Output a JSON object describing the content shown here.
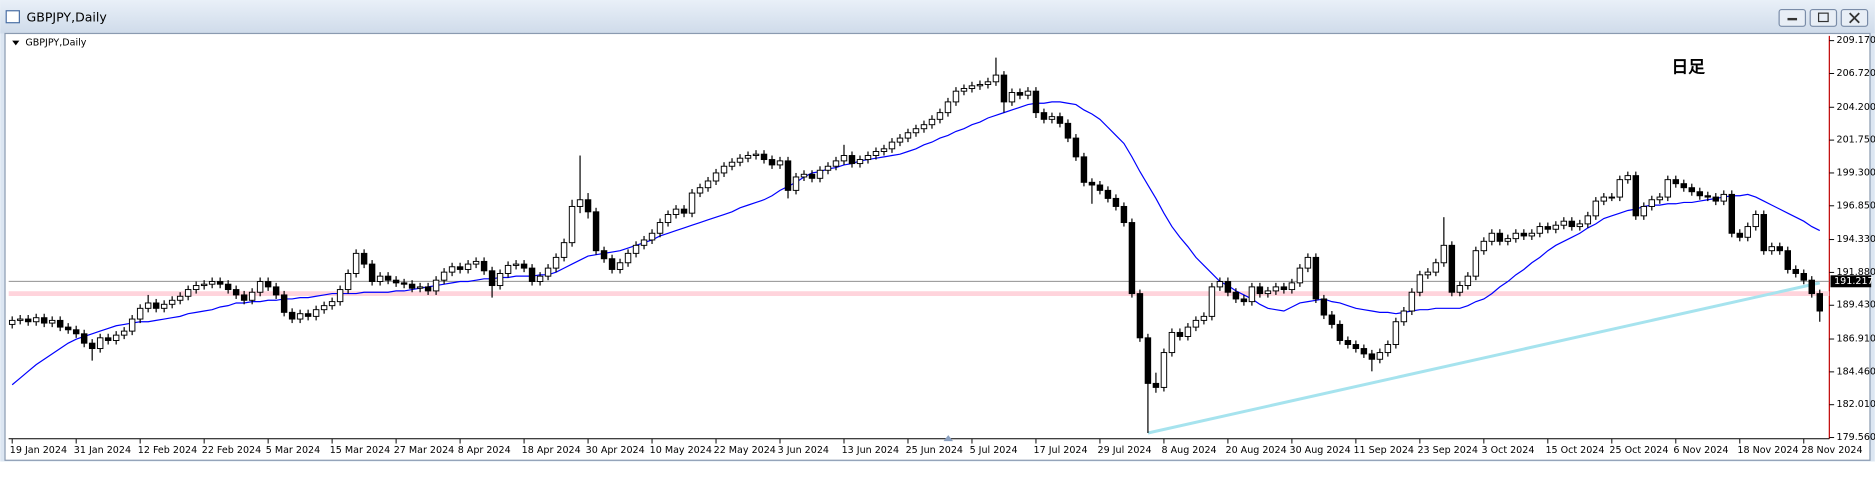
{
  "window_title": "GBPJPY,Daily",
  "chart_data": {
    "type": "candlestick",
    "title": "GBPJPY,Daily",
    "annotation": "日足",
    "categories": [
      "19 Jan 2024",
      null,
      null,
      null,
      null,
      null,
      null,
      null,
      "31 Jan 2024",
      null,
      null,
      null,
      null,
      null,
      null,
      null,
      "12 Feb 2024",
      null,
      null,
      null,
      null,
      null,
      null,
      null,
      "22 Feb 2024",
      null,
      null,
      null,
      null,
      null,
      null,
      null,
      "5 Mar 2024",
      null,
      null,
      null,
      null,
      null,
      null,
      null,
      "15 Mar 2024",
      null,
      null,
      null,
      null,
      null,
      null,
      null,
      "27 Mar 2024",
      null,
      null,
      null,
      null,
      null,
      null,
      null,
      "8 Apr 2024",
      null,
      null,
      null,
      null,
      null,
      null,
      null,
      "18 Apr 2024",
      null,
      null,
      null,
      null,
      null,
      null,
      null,
      "30 Apr 2024",
      null,
      null,
      null,
      null,
      null,
      null,
      null,
      "10 May 2024",
      null,
      null,
      null,
      null,
      null,
      null,
      null,
      "22 May 2024",
      null,
      null,
      null,
      null,
      null,
      null,
      null,
      "3 Jun 2024",
      null,
      null,
      null,
      null,
      null,
      null,
      null,
      "13 Jun 2024",
      null,
      null,
      null,
      null,
      null,
      null,
      null,
      "25 Jun 2024",
      null,
      null,
      null,
      null,
      null,
      null,
      null,
      "5 Jul 2024",
      null,
      null,
      null,
      null,
      null,
      null,
      null,
      "17 Jul 2024",
      null,
      null,
      null,
      null,
      null,
      null,
      null,
      "29 Jul 2024",
      null,
      null,
      null,
      null,
      null,
      null,
      null,
      "8 Aug 2024",
      null,
      null,
      null,
      null,
      null,
      null,
      null,
      "20 Aug 2024",
      null,
      null,
      null,
      null,
      null,
      null,
      null,
      "30 Aug 2024",
      null,
      null,
      null,
      null,
      null,
      null,
      null,
      "11 Sep 2024",
      null,
      null,
      null,
      null,
      null,
      null,
      null,
      "23 Sep 2024",
      null,
      null,
      null,
      null,
      null,
      null,
      null,
      "3 Oct 2024",
      null,
      null,
      null,
      null,
      null,
      null,
      null,
      "15 Oct 2024",
      null,
      null,
      null,
      null,
      null,
      null,
      null,
      "25 Oct 2024",
      null,
      null,
      null,
      null,
      null,
      null,
      null,
      "6 Nov 2024",
      null,
      null,
      null,
      null,
      null,
      null,
      null,
      "18 Nov 2024",
      null,
      null,
      null,
      null,
      null,
      null,
      null,
      "28 Nov 2024",
      null,
      null
    ],
    "open": [
      188.0,
      188.3,
      188.4,
      188.2,
      188.5,
      188.1,
      188.3,
      187.8,
      187.6,
      187.3,
      186.6,
      186.2,
      187.0,
      186.8,
      187.2,
      187.5,
      188.4,
      189.2,
      189.6,
      189.2,
      189.5,
      189.8,
      190.1,
      190.6,
      190.9,
      191.0,
      191.2,
      191.0,
      190.6,
      190.2,
      189.8,
      190.4,
      191.2,
      190.8,
      190.2,
      188.9,
      188.4,
      188.8,
      188.6,
      189.1,
      189.4,
      189.7,
      190.6,
      191.8,
      193.3,
      192.5,
      191.2,
      191.6,
      191.3,
      191.1,
      191.0,
      190.7,
      190.8,
      190.5,
      191.3,
      191.9,
      192.3,
      192.1,
      192.5,
      192.7,
      192.0,
      190.9,
      191.8,
      192.4,
      192.5,
      192.2,
      191.2,
      191.6,
      192.2,
      193.0,
      194.1,
      196.8,
      197.3,
      196.4,
      193.5,
      192.9,
      192.1,
      192.6,
      193.3,
      193.9,
      194.3,
      194.8,
      195.6,
      196.2,
      196.6,
      196.3,
      197.8,
      198.2,
      198.7,
      199.3,
      199.8,
      200.1,
      200.4,
      200.6,
      200.7,
      200.3,
      199.9,
      200.2,
      198.0,
      199.0,
      199.2,
      198.9,
      199.5,
      199.8,
      200.2,
      200.6,
      200.0,
      200.3,
      200.6,
      200.9,
      201.1,
      201.6,
      201.9,
      202.3,
      202.6,
      202.9,
      203.3,
      203.8,
      204.6,
      205.4,
      205.6,
      205.8,
      205.9,
      206.1,
      206.6,
      204.6,
      205.3,
      205.1,
      205.4,
      203.8,
      203.3,
      203.5,
      203.0,
      201.9,
      200.5,
      198.6,
      198.4,
      198.0,
      197.4,
      196.8,
      195.6,
      190.3,
      187.0,
      183.6,
      183.3,
      185.9,
      187.4,
      187.1,
      187.8,
      188.3,
      188.6,
      190.8,
      191.2,
      190.4,
      189.9,
      189.7,
      190.8,
      190.3,
      190.5,
      190.8,
      190.6,
      191.1,
      192.2,
      193.0,
      189.9,
      188.7,
      188.0,
      186.8,
      186.5,
      186.2,
      185.8,
      185.4,
      185.9,
      186.5,
      188.2,
      189.0,
      190.4,
      191.7,
      191.9,
      192.6,
      193.9,
      190.4,
      190.9,
      191.6,
      193.5,
      194.2,
      194.8,
      194.2,
      194.4,
      194.8,
      194.6,
      194.8,
      195.3,
      195.1,
      195.4,
      195.7,
      195.3,
      195.5,
      196.1,
      197.2,
      197.5,
      197.5,
      198.8,
      199.1,
      196.1,
      196.8,
      197.3,
      197.5,
      198.8,
      198.5,
      198.2,
      197.9,
      197.6,
      197.5,
      197.2,
      197.7,
      194.8,
      194.5,
      195.3,
      196.2,
      193.5,
      193.8,
      193.5,
      192.1,
      191.8,
      191.3,
      190.3
    ],
    "high": [
      188.6,
      188.7,
      188.7,
      188.8,
      188.8,
      188.6,
      188.6,
      188.1,
      187.9,
      187.6,
      186.9,
      187.3,
      187.3,
      187.5,
      187.8,
      188.7,
      189.5,
      190.2,
      189.9,
      189.8,
      190.1,
      190.4,
      190.9,
      191.2,
      191.3,
      191.5,
      191.5,
      191.3,
      190.9,
      190.5,
      190.7,
      191.5,
      191.5,
      191.1,
      190.5,
      189.2,
      189.1,
      189.1,
      189.4,
      189.7,
      190.0,
      190.9,
      192.1,
      193.6,
      193.6,
      192.8,
      191.9,
      191.9,
      191.6,
      191.4,
      191.3,
      191.1,
      191.1,
      191.6,
      192.2,
      192.6,
      192.6,
      192.8,
      193.0,
      193.0,
      192.3,
      192.1,
      192.7,
      192.8,
      192.8,
      192.5,
      191.9,
      192.5,
      193.3,
      194.4,
      197.3,
      200.6,
      197.8,
      196.7,
      193.8,
      193.2,
      192.9,
      193.6,
      194.2,
      194.6,
      195.1,
      195.9,
      196.5,
      196.9,
      196.9,
      198.1,
      198.5,
      199.0,
      199.6,
      200.1,
      200.4,
      200.7,
      200.9,
      201.0,
      201.0,
      200.6,
      200.5,
      200.5,
      199.3,
      199.5,
      199.5,
      199.8,
      200.1,
      200.5,
      201.4,
      200.9,
      200.6,
      200.9,
      201.2,
      201.4,
      201.9,
      202.2,
      202.6,
      202.9,
      203.2,
      203.6,
      204.1,
      204.9,
      205.7,
      205.9,
      206.1,
      206.2,
      206.4,
      207.9,
      206.9,
      205.6,
      205.6,
      205.7,
      205.7,
      204.1,
      203.8,
      203.8,
      203.3,
      202.2,
      200.8,
      198.9,
      198.7,
      198.3,
      197.7,
      197.1,
      195.9,
      190.6,
      187.3,
      184.4,
      186.2,
      187.7,
      187.7,
      188.1,
      188.6,
      188.9,
      191.1,
      191.5,
      191.5,
      190.7,
      190.2,
      191.1,
      191.1,
      190.8,
      191.1,
      191.1,
      191.4,
      192.5,
      193.3,
      193.3,
      190.2,
      189.0,
      188.3,
      187.1,
      186.8,
      186.5,
      186.1,
      186.2,
      186.8,
      188.5,
      189.3,
      190.7,
      192.0,
      192.2,
      192.9,
      196.0,
      194.2,
      191.2,
      191.9,
      193.8,
      194.5,
      195.1,
      195.1,
      194.7,
      195.1,
      195.1,
      195.1,
      195.6,
      195.6,
      195.7,
      196.0,
      196.0,
      195.8,
      196.4,
      197.5,
      197.8,
      197.8,
      199.1,
      199.4,
      199.4,
      197.1,
      197.6,
      197.8,
      199.1,
      199.1,
      198.8,
      198.5,
      198.2,
      197.9,
      197.8,
      198.0,
      198.0,
      195.1,
      195.6,
      196.5,
      196.5,
      194.1,
      194.1,
      193.8,
      192.4,
      192.1,
      191.6,
      190.6
    ],
    "low": [
      187.7,
      188.0,
      187.9,
      187.9,
      187.8,
      187.8,
      187.5,
      187.3,
      187.0,
      186.3,
      185.3,
      185.9,
      186.5,
      186.5,
      186.9,
      187.2,
      188.1,
      188.9,
      188.9,
      188.9,
      189.2,
      189.5,
      189.8,
      190.3,
      190.6,
      190.7,
      190.7,
      190.3,
      189.9,
      189.5,
      189.5,
      190.1,
      190.5,
      189.9,
      188.6,
      188.1,
      188.1,
      188.3,
      188.3,
      188.8,
      189.1,
      189.4,
      190.3,
      191.5,
      192.2,
      190.9,
      190.9,
      191.0,
      190.8,
      190.7,
      190.4,
      190.4,
      190.2,
      190.2,
      191.0,
      191.6,
      191.8,
      191.8,
      192.2,
      191.7,
      190.0,
      190.6,
      191.5,
      192.1,
      191.9,
      190.9,
      190.9,
      191.3,
      191.9,
      192.7,
      193.8,
      196.3,
      195.9,
      193.2,
      192.6,
      191.8,
      191.8,
      192.3,
      193.0,
      193.6,
      194.0,
      194.5,
      195.3,
      195.9,
      196.0,
      196.0,
      197.5,
      197.9,
      198.4,
      199.0,
      199.5,
      199.8,
      200.1,
      200.3,
      200.0,
      199.6,
      199.6,
      197.4,
      197.7,
      198.7,
      198.6,
      198.6,
      199.2,
      199.5,
      199.9,
      199.7,
      199.7,
      200.0,
      200.3,
      200.6,
      200.8,
      201.3,
      201.6,
      202.0,
      202.3,
      202.6,
      203.0,
      203.5,
      204.3,
      205.1,
      205.3,
      205.5,
      205.6,
      205.8,
      203.8,
      204.3,
      204.8,
      204.8,
      203.4,
      203.0,
      203.0,
      202.7,
      201.6,
      200.2,
      198.3,
      197.0,
      197.7,
      197.1,
      196.5,
      195.3,
      190.0,
      186.7,
      179.9,
      182.9,
      183.0,
      185.6,
      186.8,
      186.8,
      187.5,
      188.0,
      188.3,
      190.5,
      190.1,
      189.6,
      189.4,
      189.4,
      190.0,
      190.0,
      190.2,
      190.3,
      190.3,
      190.8,
      191.9,
      189.6,
      188.4,
      187.7,
      186.5,
      186.2,
      185.9,
      185.5,
      184.5,
      185.1,
      185.6,
      186.2,
      187.9,
      188.7,
      190.1,
      191.4,
      191.6,
      192.3,
      190.1,
      190.1,
      190.6,
      191.3,
      193.2,
      193.9,
      193.9,
      193.9,
      194.1,
      194.3,
      194.3,
      194.5,
      194.8,
      194.8,
      195.1,
      195.0,
      195.0,
      195.2,
      195.8,
      196.9,
      197.2,
      197.2,
      198.5,
      195.8,
      195.8,
      196.5,
      197.0,
      197.2,
      198.2,
      197.9,
      197.6,
      197.3,
      197.2,
      196.9,
      196.9,
      194.5,
      194.2,
      194.2,
      195.0,
      193.2,
      193.2,
      193.2,
      191.8,
      191.5,
      191.0,
      190.0,
      188.2
    ],
    "close": [
      188.3,
      188.4,
      188.2,
      188.5,
      188.1,
      188.3,
      187.8,
      187.6,
      187.3,
      186.6,
      186.2,
      187.0,
      186.8,
      187.2,
      187.5,
      188.4,
      189.2,
      189.6,
      189.2,
      189.5,
      189.8,
      190.1,
      190.6,
      190.9,
      191.0,
      191.2,
      191.0,
      190.6,
      190.2,
      189.8,
      190.4,
      191.2,
      190.8,
      190.2,
      188.9,
      188.4,
      188.8,
      188.6,
      189.1,
      189.4,
      189.7,
      190.6,
      191.8,
      193.3,
      192.5,
      191.2,
      191.6,
      191.3,
      191.1,
      191.0,
      190.7,
      190.8,
      190.5,
      191.3,
      191.9,
      192.3,
      192.1,
      192.5,
      192.7,
      192.0,
      190.9,
      191.8,
      192.4,
      192.5,
      192.2,
      191.2,
      191.6,
      192.2,
      193.0,
      194.1,
      196.8,
      197.3,
      196.4,
      193.5,
      192.9,
      192.1,
      192.6,
      193.3,
      193.9,
      194.3,
      194.8,
      195.6,
      196.2,
      196.6,
      196.3,
      197.8,
      198.2,
      198.7,
      199.3,
      199.8,
      200.1,
      200.4,
      200.6,
      200.7,
      200.3,
      199.9,
      200.2,
      198.0,
      199.0,
      199.2,
      198.9,
      199.5,
      199.8,
      200.2,
      200.6,
      200.0,
      200.3,
      200.6,
      200.9,
      201.1,
      201.6,
      201.9,
      202.3,
      202.6,
      202.9,
      203.3,
      203.8,
      204.6,
      205.4,
      205.6,
      205.8,
      205.9,
      206.1,
      206.6,
      204.6,
      205.3,
      205.1,
      205.4,
      203.8,
      203.3,
      203.5,
      203.0,
      201.9,
      200.5,
      198.6,
      198.4,
      198.0,
      197.4,
      196.8,
      195.6,
      190.3,
      187.0,
      183.6,
      183.3,
      185.9,
      187.4,
      187.1,
      187.8,
      188.3,
      188.6,
      190.8,
      191.2,
      190.4,
      189.9,
      189.7,
      190.8,
      190.3,
      190.5,
      190.8,
      190.6,
      191.1,
      192.2,
      193.0,
      189.9,
      188.7,
      188.0,
      186.8,
      186.5,
      186.2,
      185.8,
      185.4,
      185.9,
      186.5,
      188.2,
      189.0,
      190.4,
      191.7,
      191.9,
      192.6,
      193.9,
      190.4,
      190.9,
      191.6,
      193.5,
      194.2,
      194.8,
      194.2,
      194.4,
      194.8,
      194.6,
      194.8,
      195.3,
      195.1,
      195.4,
      195.7,
      195.3,
      195.5,
      196.1,
      197.2,
      197.5,
      197.5,
      198.8,
      199.1,
      196.1,
      196.8,
      197.3,
      197.5,
      198.8,
      198.5,
      198.2,
      197.9,
      197.6,
      197.5,
      197.2,
      197.7,
      194.8,
      194.5,
      195.3,
      196.2,
      193.5,
      193.8,
      193.5,
      192.1,
      191.8,
      191.3,
      190.3,
      189.0
    ],
    "ma": {
      "color": "#0000ff",
      "values": [
        183.5,
        184.0,
        184.5,
        185.0,
        185.4,
        185.8,
        186.2,
        186.6,
        186.9,
        187.1,
        187.3,
        187.5,
        187.7,
        187.9,
        188.0,
        188.1,
        188.2,
        188.2,
        188.3,
        188.4,
        188.5,
        188.6,
        188.8,
        188.9,
        189.0,
        189.1,
        189.3,
        189.4,
        189.6,
        189.6,
        189.7,
        189.7,
        189.8,
        189.8,
        189.9,
        189.9,
        190.0,
        190.0,
        190.1,
        190.2,
        190.3,
        190.3,
        190.3,
        190.3,
        190.4,
        190.4,
        190.4,
        190.4,
        190.5,
        190.5,
        190.6,
        190.7,
        190.8,
        190.9,
        191.0,
        191.1,
        191.2,
        191.2,
        191.3,
        191.4,
        191.4,
        191.5,
        191.5,
        191.6,
        191.6,
        191.6,
        191.7,
        191.7,
        191.9,
        192.2,
        192.5,
        192.8,
        193.1,
        193.2,
        193.3,
        193.4,
        193.5,
        193.7,
        193.9,
        194.1,
        194.3,
        194.6,
        194.8,
        195.0,
        195.2,
        195.4,
        195.6,
        195.8,
        196.0,
        196.2,
        196.4,
        196.7,
        196.9,
        197.1,
        197.3,
        197.6,
        198.0,
        198.3,
        198.6,
        199.0,
        199.3,
        199.4,
        199.6,
        199.7,
        199.9,
        200.0,
        200.2,
        200.3,
        200.4,
        200.5,
        200.6,
        200.7,
        200.9,
        201.1,
        201.4,
        201.6,
        201.9,
        202.1,
        202.4,
        202.6,
        202.9,
        203.1,
        203.4,
        203.6,
        203.8,
        204.0,
        204.2,
        204.4,
        204.5,
        204.5,
        204.6,
        204.6,
        204.5,
        204.4,
        204.0,
        203.7,
        203.3,
        202.7,
        202.1,
        201.5,
        200.5,
        199.4,
        198.4,
        197.4,
        196.3,
        195.3,
        194.5,
        193.8,
        193.0,
        192.4,
        191.8,
        191.2,
        190.9,
        190.5,
        190.2,
        189.9,
        189.5,
        189.2,
        189.1,
        189.0,
        189.3,
        189.6,
        189.7,
        189.8,
        189.9,
        189.7,
        189.6,
        189.4,
        189.2,
        189.1,
        189.0,
        188.9,
        188.9,
        188.8,
        188.9,
        189.0,
        189.1,
        189.1,
        189.2,
        189.2,
        189.2,
        189.2,
        189.4,
        189.7,
        189.9,
        190.3,
        190.8,
        191.2,
        191.7,
        192.1,
        192.6,
        193.0,
        193.5,
        193.9,
        194.2,
        194.5,
        194.8,
        195.2,
        195.5,
        195.9,
        196.1,
        196.3,
        196.5,
        196.6,
        196.8,
        196.9,
        196.9,
        197.0,
        197.0,
        197.1,
        197.1,
        197.2,
        197.3,
        197.4,
        197.5,
        197.6,
        197.6,
        197.7,
        197.5,
        197.2,
        196.9,
        196.6,
        196.3,
        196.0,
        195.7,
        195.3,
        195.0
      ]
    },
    "up_color": "#ffffff",
    "down_color": "#000000",
    "current_price": 191.217,
    "hline": {
      "value": 190.3,
      "color": "#ffd4dc"
    },
    "trendline": {
      "x": [
        142,
        226
      ],
      "y": [
        179.9,
        191.1
      ],
      "color": "#a6e3ee"
    },
    "ylim": [
      179.56,
      209.17
    ],
    "yticks": [
      {
        "value": 179.56,
        "label": "179.560"
      },
      {
        "value": 182.01,
        "label": "182.010"
      },
      {
        "value": 184.46,
        "label": "184.460"
      },
      {
        "value": 186.91,
        "label": "186.910"
      },
      {
        "value": 189.43,
        "label": "189.430"
      },
      {
        "value": 191.88,
        "label": "191.880"
      },
      {
        "value": 194.33,
        "label": "194.330"
      },
      {
        "value": 196.85,
        "label": "196.850"
      },
      {
        "value": 199.3,
        "label": "199.300"
      },
      {
        "value": 201.75,
        "label": "201.750"
      },
      {
        "value": 204.2,
        "label": "204.200"
      },
      {
        "value": 206.72,
        "label": "206.720"
      },
      {
        "value": 209.17,
        "label": "209.170"
      }
    ],
    "grid": false
  }
}
